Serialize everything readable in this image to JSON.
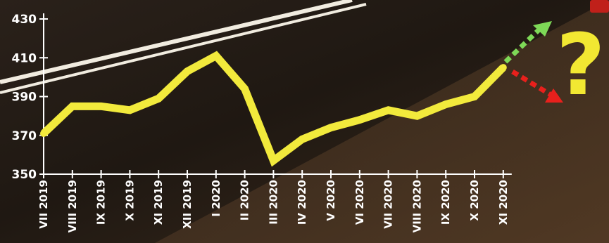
{
  "colors": {
    "line": "#f2ea3c",
    "axis": "#ffffff",
    "arrow_up": "#7ed957",
    "arrow_down": "#e8201c",
    "question_mark": "#f2e832"
  },
  "question_mark": "?",
  "chart_data": {
    "type": "line",
    "title": "",
    "xlabel": "",
    "ylabel": "",
    "categories": [
      "VII 2019",
      "VIII 2019",
      "IX 2019",
      "X 2019",
      "XI 2019",
      "XII 2019",
      "I 2020",
      "II 2020",
      "III 2020",
      "IV 2020",
      "V 2020",
      "VI 2020",
      "VII 2020",
      "VIII 2020",
      "IX 2020",
      "X 2020",
      "XI 2020"
    ],
    "values": [
      371,
      385,
      385,
      383,
      389,
      403,
      411,
      394,
      357,
      368,
      374,
      378,
      383,
      380,
      386,
      390,
      405
    ],
    "ylim": [
      350,
      430
    ],
    "yticks": [
      "350",
      "370",
      "390",
      "410",
      "430"
    ],
    "grid": false,
    "legend": "none",
    "annotations": [
      {
        "type": "arrow",
        "direction": "up",
        "color": "green"
      },
      {
        "type": "arrow",
        "direction": "down",
        "color": "red"
      },
      {
        "type": "text",
        "text": "?"
      }
    ]
  }
}
